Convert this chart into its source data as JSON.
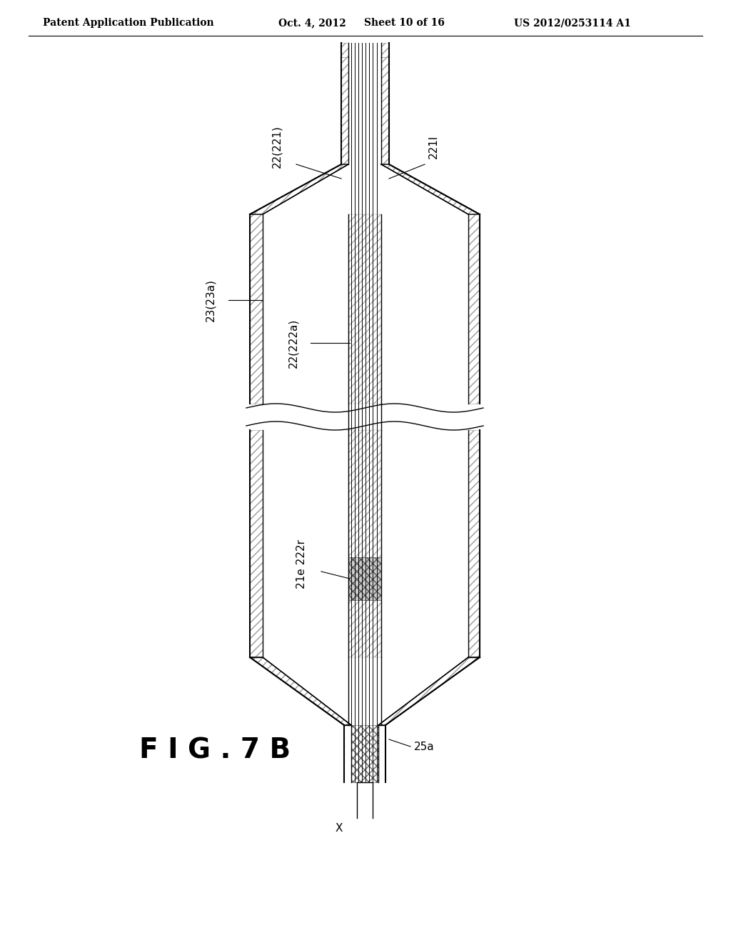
{
  "title": "F I G . 7 B",
  "header_left": "Patent Application Publication",
  "header_center": "Oct. 4, 2012",
  "header_sheet": "Sheet 10 of 16",
  "header_right": "US 2012/0253114 A1",
  "bg_color": "#ffffff",
  "line_color": "#000000",
  "labels": {
    "22_221": "22(221)",
    "221l": "221l",
    "23_23a": "23(23a)",
    "22_222a": "22(222a)",
    "21e_222r": "21e 222r",
    "25a": "25a",
    "x": "X"
  }
}
